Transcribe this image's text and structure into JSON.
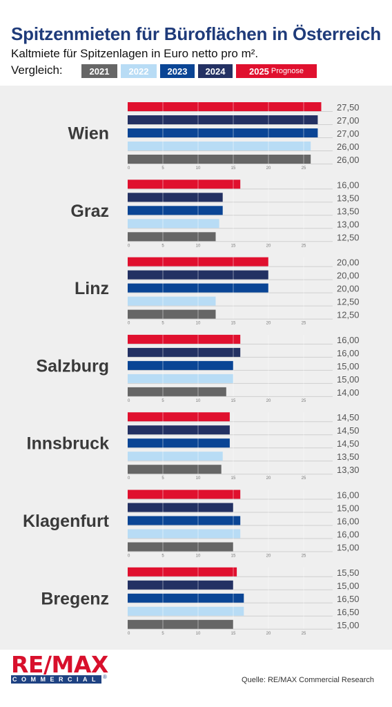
{
  "header": {
    "title": "Spitzenmieten für Büroflächen in Österreich",
    "subtitle": "Kaltmiete für Spitzenlagen in Euro netto pro m².",
    "legend_label": "Vergleich:"
  },
  "legend": [
    {
      "label": "2021",
      "suffix": "",
      "color": "#666666"
    },
    {
      "label": "2022",
      "suffix": "",
      "color": "#b8dcf5"
    },
    {
      "label": "2023",
      "suffix": "",
      "color": "#0a4595"
    },
    {
      "label": "2024",
      "suffix": "",
      "color": "#233163"
    },
    {
      "label": "2025",
      "suffix": "Prognose",
      "color": "#e0102e"
    }
  ],
  "footer": {
    "logo_main": "RE/MAX",
    "logo_sub": "COMMERCIAL",
    "logo_reg": "®",
    "source": "Quelle: RE/MAX Commercial Research"
  },
  "chart_data": {
    "type": "bar",
    "orientation": "horizontal",
    "xlim": [
      0,
      27.5
    ],
    "xticks": [
      0,
      5,
      10,
      15,
      20,
      25
    ],
    "series_order": [
      "2025 Prognose",
      "2024",
      "2023",
      "2022",
      "2021"
    ],
    "series_colors": [
      "#e0102e",
      "#233163",
      "#0a4595",
      "#b8dcf5",
      "#666666"
    ],
    "groups": [
      {
        "city": "Wien",
        "values": [
          27.5,
          27.0,
          27.0,
          26.0,
          26.0
        ],
        "labels": [
          "27,50",
          "27,00",
          "27,00",
          "26,00",
          "26,00"
        ]
      },
      {
        "city": "Graz",
        "values": [
          16.0,
          13.5,
          13.5,
          13.0,
          12.5
        ],
        "labels": [
          "16,00",
          "13,50",
          "13,50",
          "13,00",
          "12,50"
        ]
      },
      {
        "city": "Linz",
        "values": [
          20.0,
          20.0,
          20.0,
          12.5,
          12.5
        ],
        "labels": [
          "20,00",
          "20,00",
          "20,00",
          "12,50",
          "12,50"
        ]
      },
      {
        "city": "Salzburg",
        "values": [
          16.0,
          16.0,
          15.0,
          15.0,
          14.0
        ],
        "labels": [
          "16,00",
          "16,00",
          "15,00",
          "15,00",
          "14,00"
        ]
      },
      {
        "city": "Innsbruck",
        "values": [
          14.5,
          14.5,
          14.5,
          13.5,
          13.3
        ],
        "labels": [
          "14,50",
          "14,50",
          "14,50",
          "13,50",
          "13,30"
        ]
      },
      {
        "city": "Klagenfurt",
        "values": [
          16.0,
          15.0,
          16.0,
          16.0,
          15.0
        ],
        "labels": [
          "16,00",
          "15,00",
          "16,00",
          "16,00",
          "15,00"
        ]
      },
      {
        "city": "Bregenz",
        "values": [
          15.5,
          15.0,
          16.5,
          16.5,
          15.0
        ],
        "labels": [
          "15,50",
          "15,00",
          "16,50",
          "16,50",
          "15,00"
        ]
      }
    ]
  }
}
